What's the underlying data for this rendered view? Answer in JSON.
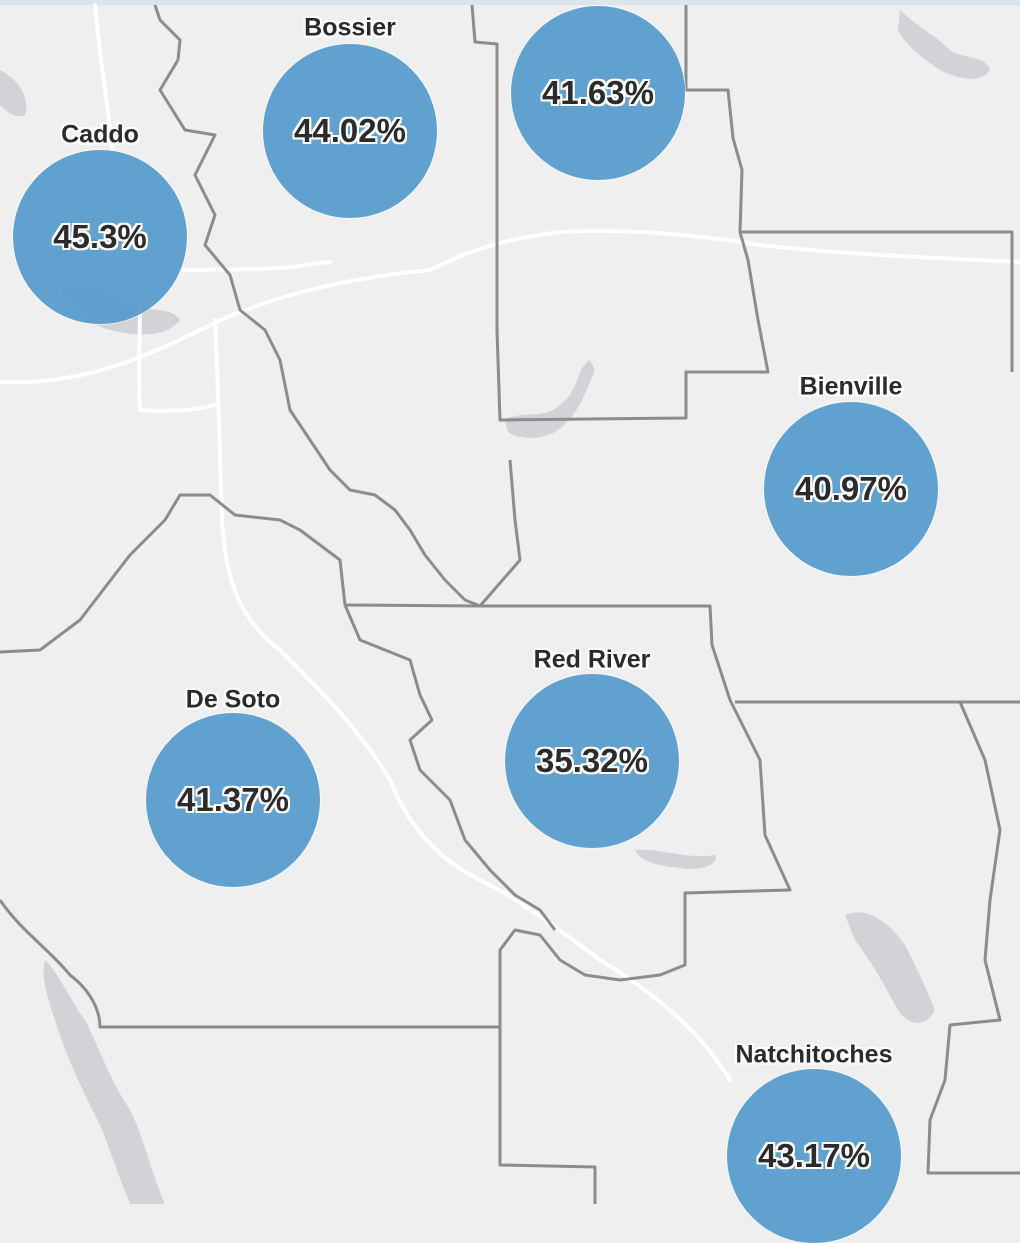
{
  "map": {
    "colors": {
      "background": "#efefef",
      "water": "#d3d3d7",
      "boundary": "#8c8c8c",
      "road": "#ffffff",
      "bubble": "#569bcc"
    }
  },
  "markers": [
    {
      "id": "caddo",
      "name": "Caddo",
      "value": "45.3%"
    },
    {
      "id": "bossier",
      "name": "Bossier",
      "value": "44.02%"
    },
    {
      "id": "webster",
      "name": "",
      "value": "41.63%"
    },
    {
      "id": "bienville",
      "name": "Bienville",
      "value": "40.97%"
    },
    {
      "id": "red-river",
      "name": "Red River",
      "value": "35.32%"
    },
    {
      "id": "de-soto",
      "name": "De Soto",
      "value": "41.37%"
    },
    {
      "id": "natchitoches",
      "name": "Natchitoches",
      "value": "43.17%"
    }
  ]
}
